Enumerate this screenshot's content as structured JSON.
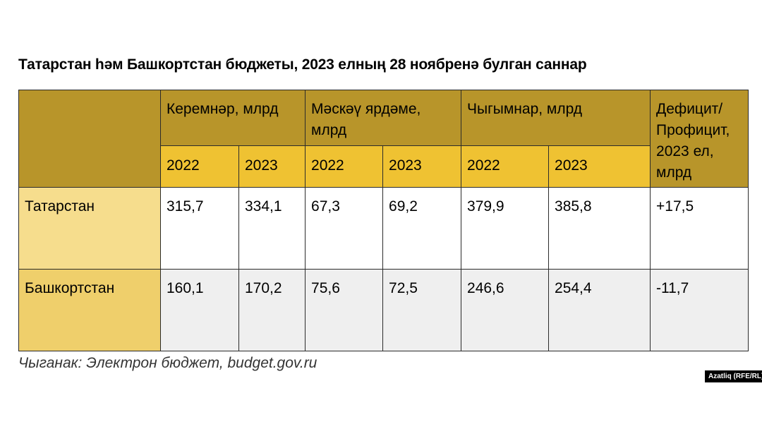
{
  "title": "Татарстан һәм Башкортстан бюджеты, 2023 елның 28 ноябренә булган саннар",
  "header": {
    "groups": [
      "Керемнәр, млрд",
      "Мәскәү ярдәме, млрд",
      "Чыгымнар, млрд"
    ],
    "balance": "Дефицит/ Профицит, 2023 ел, млрд",
    "years": [
      "2022",
      "2023",
      "2022",
      "2023",
      "2022",
      "2023"
    ]
  },
  "rows": [
    {
      "region": "Татарстан",
      "values": [
        "315,7",
        "334,1",
        "67,3",
        "69,2",
        "379,9",
        "385,8"
      ],
      "balance": "+17,5"
    },
    {
      "region": "Башкортстан",
      "values": [
        "160,1",
        "170,2",
        "75,6",
        "72,5",
        "246,6",
        "254,4"
      ],
      "balance": "-11,7"
    }
  ],
  "source": "Чыганак: Электрон бюджет, budget.gov.ru",
  "credit": "Azatliq (RFE/RL)",
  "colors": {
    "header_dark": "#b8952a",
    "header_year": "#efc232",
    "row_label_1": "#f6dd8d",
    "row_label_2": "#efcf6b",
    "row_alt": "#efefef"
  }
}
